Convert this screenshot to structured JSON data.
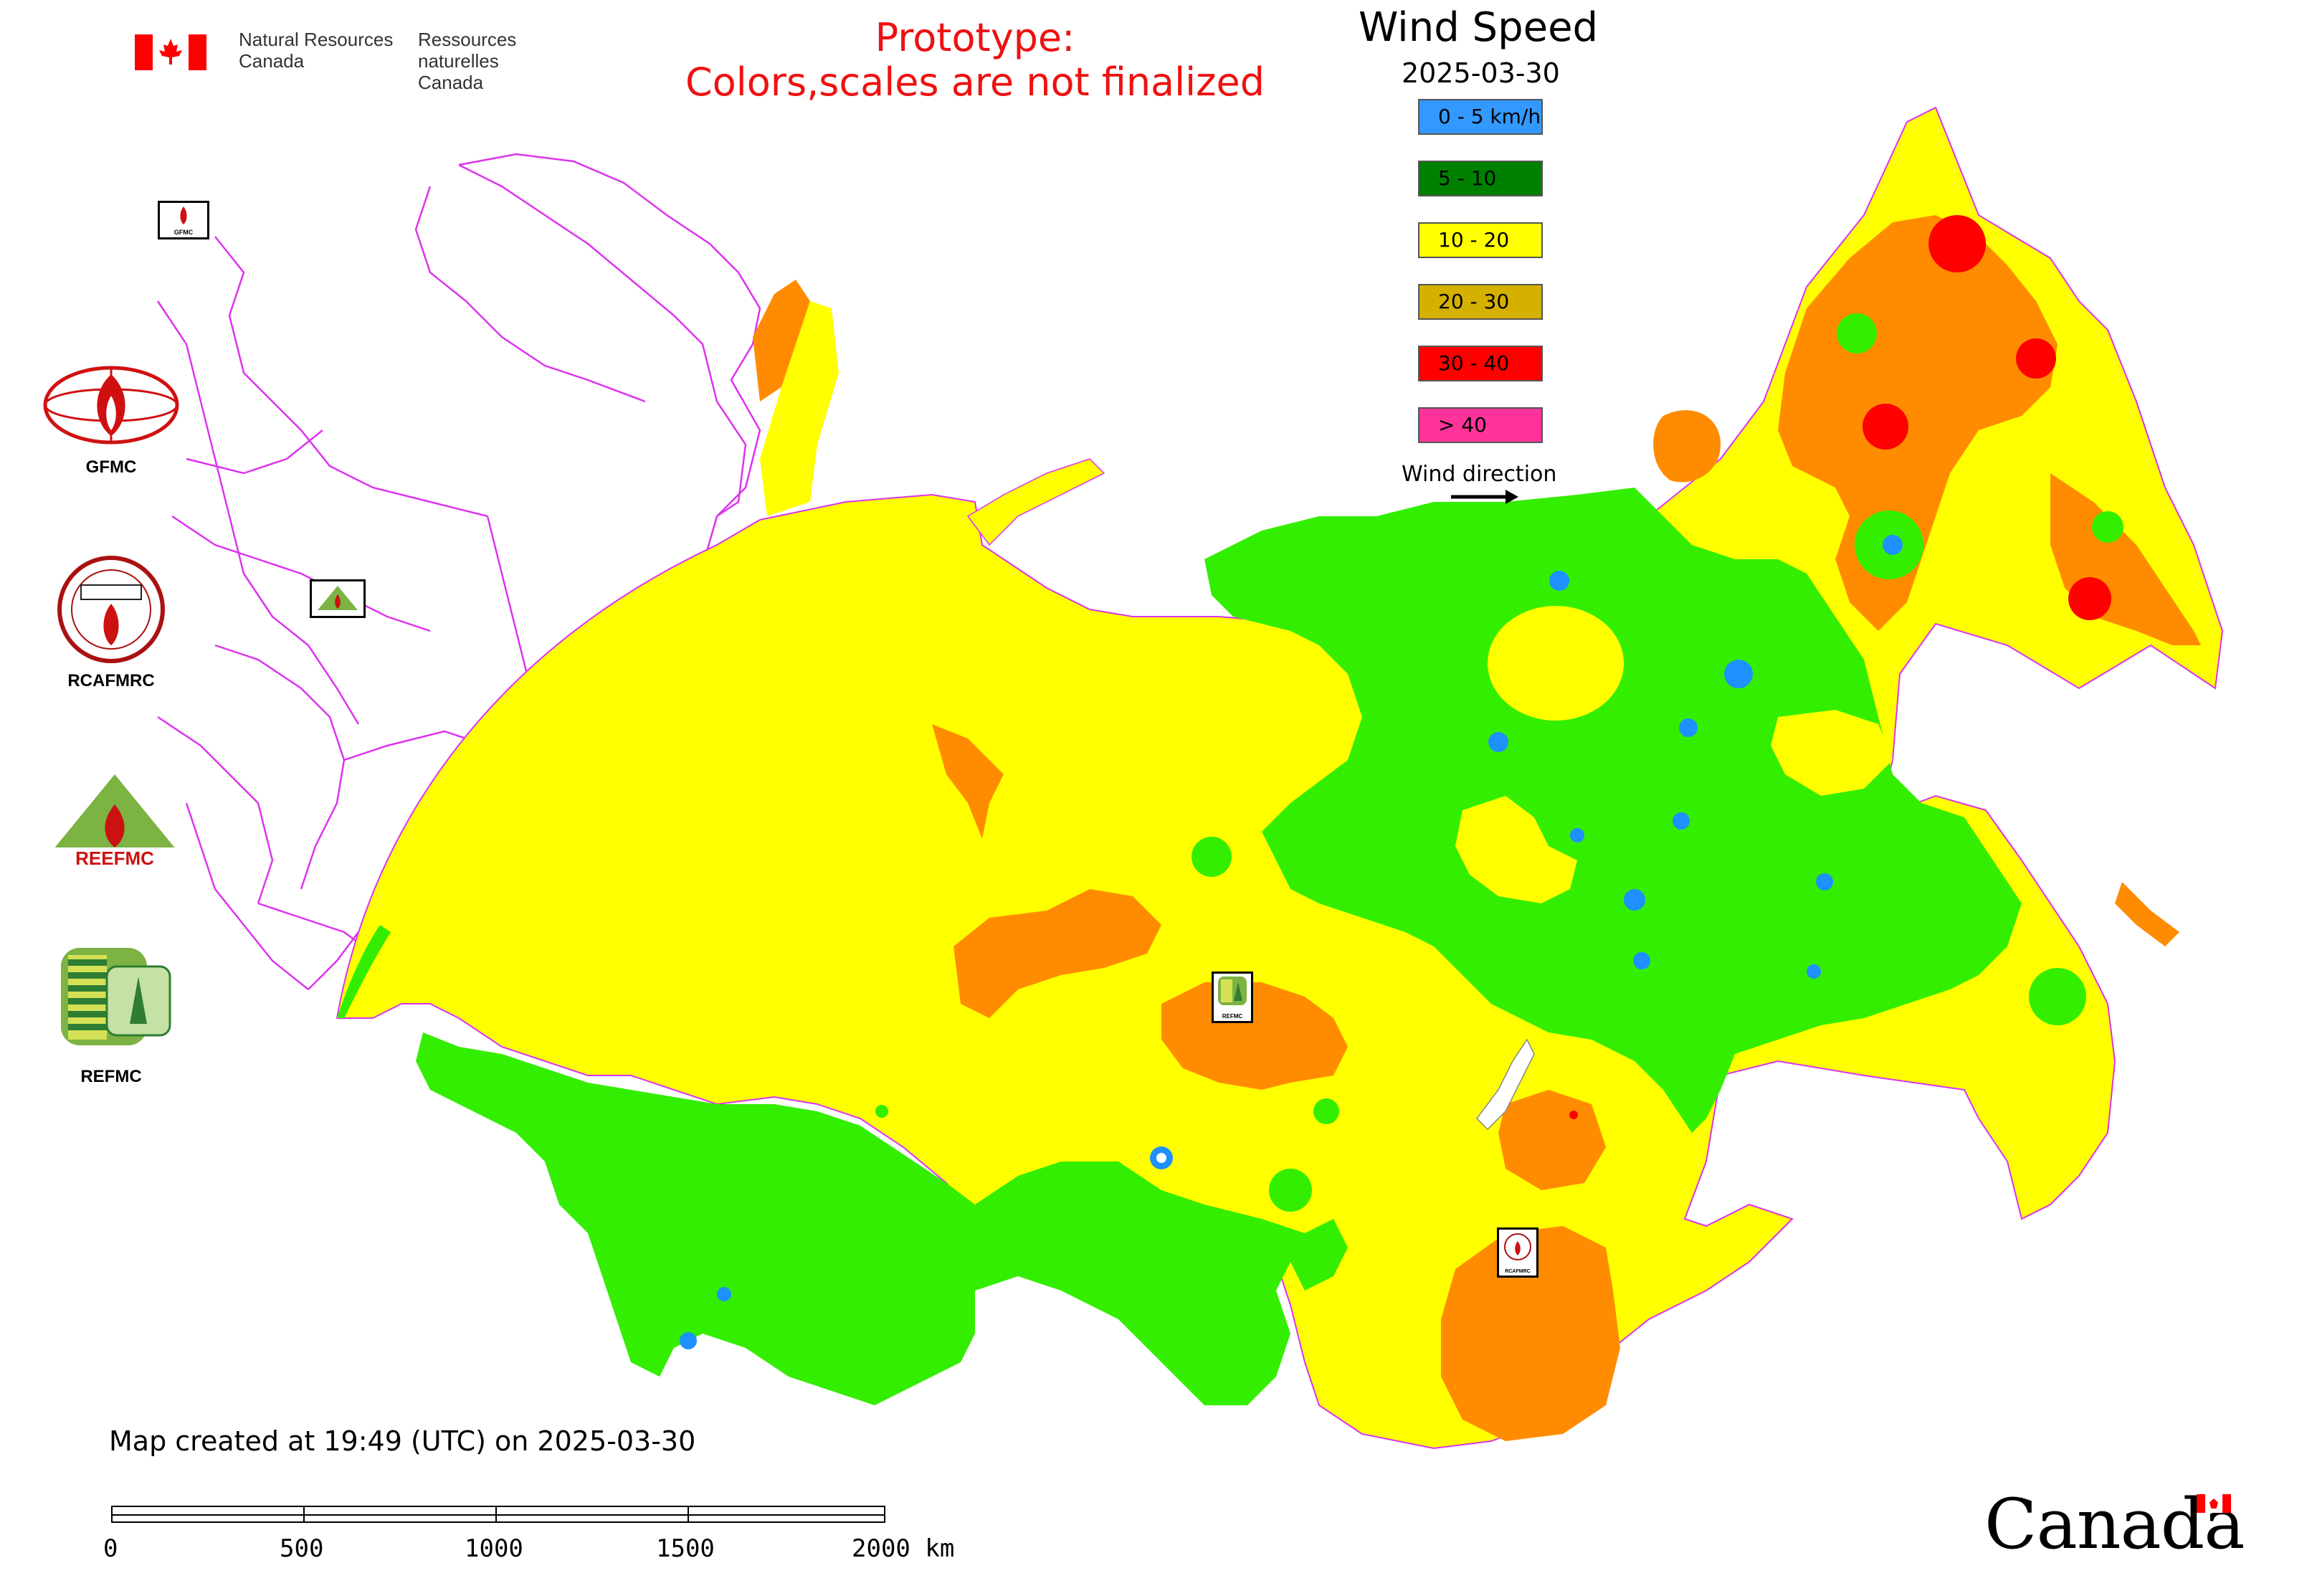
{
  "government": {
    "name_en_line1": "Natural Resources",
    "name_en_line2": "Canada",
    "name_fr_line1": "Ressources naturelles",
    "name_fr_line2": "Canada",
    "wordmark": "Canada"
  },
  "notice": {
    "line1": "Prototype:",
    "line2": "Colors,scales are not finalized"
  },
  "map": {
    "title": "Wind Speed",
    "date": "2025-03-30",
    "created": "Map created at 19:49 (UTC) on 2025-03-30",
    "wind_direction_label": "Wind direction",
    "legend": [
      {
        "label": "0 - 5 km/h",
        "color": "#3399ff"
      },
      {
        "label": "5 - 10",
        "color": "#008000"
      },
      {
        "label": "10 - 20",
        "color": "#ffff00"
      },
      {
        "label": "20 - 30",
        "color": "#d4b000"
      },
      {
        "label": "30 - 40",
        "color": "#ff0000"
      },
      {
        "label": "> 40",
        "color": "#ff3399"
      }
    ],
    "colors": {
      "calm": "#1e90ff",
      "light": "#33ee00",
      "moderate": "#ffff00",
      "strong": "#ff8c00",
      "very_strong": "#ff0000",
      "boundaries": "#dd33ee"
    },
    "scale": {
      "labels": [
        "0",
        "500",
        "1000",
        "1500",
        "2000 km"
      ]
    }
  },
  "organizations": [
    {
      "label": "GFMC",
      "icon": "gfmc-logo"
    },
    {
      "label": "RCAFMRC",
      "icon": "rcafmrc-logo"
    },
    {
      "label": "",
      "icon": "reefmc-logo",
      "logo_text": "REEFMC"
    },
    {
      "label": "REFMC",
      "icon": "refmc-logo"
    }
  ],
  "map_markers": [
    {
      "icon": "gfmc-marker",
      "text": "GFMC"
    },
    {
      "icon": "reefmc-marker"
    },
    {
      "icon": "refmc-marker",
      "text": "REFMC"
    },
    {
      "icon": "rcafmrc-marker",
      "text": "RCAFMRC"
    }
  ]
}
